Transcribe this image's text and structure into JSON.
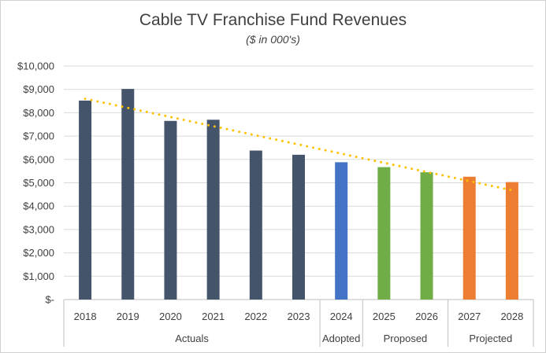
{
  "chart_data": {
    "type": "bar",
    "title": "Cable TV Franchise Fund Revenues",
    "subtitle": "($ in 000's)",
    "xlabel": "",
    "ylabel": "",
    "ylim": [
      0,
      10000
    ],
    "y_ticks": [
      0,
      1000,
      2000,
      3000,
      4000,
      5000,
      6000,
      7000,
      8000,
      9000,
      10000
    ],
    "y_tick_labels": [
      "$-",
      "$1,000",
      "$2,000",
      "$3,000",
      "$4,000",
      "$5,000",
      "$6,000",
      "$7,000",
      "$8,000",
      "$9,000",
      "$10,000"
    ],
    "grid": true,
    "legend": "none",
    "categories": [
      "2018",
      "2019",
      "2020",
      "2021",
      "2022",
      "2023",
      "2024",
      "2025",
      "2026",
      "2027",
      "2028"
    ],
    "values": [
      8520,
      9020,
      7650,
      7700,
      6380,
      6200,
      5880,
      5670,
      5450,
      5260,
      5030
    ],
    "bar_colors": [
      "#44546a",
      "#44546a",
      "#44546a",
      "#44546a",
      "#44546a",
      "#44546a",
      "#4472c4",
      "#70ad47",
      "#70ad47",
      "#ed7d31",
      "#ed7d31"
    ],
    "groups": [
      {
        "label": "Actuals",
        "start": 0,
        "end": 5
      },
      {
        "label": "Adopted",
        "start": 6,
        "end": 6
      },
      {
        "label": "Proposed",
        "start": 7,
        "end": 8
      },
      {
        "label": "Projected",
        "start": 9,
        "end": 10
      }
    ],
    "trendline": {
      "type": "linear",
      "style": "dotted",
      "color": "#ffc000",
      "start": 8600,
      "end": 4680
    }
  }
}
